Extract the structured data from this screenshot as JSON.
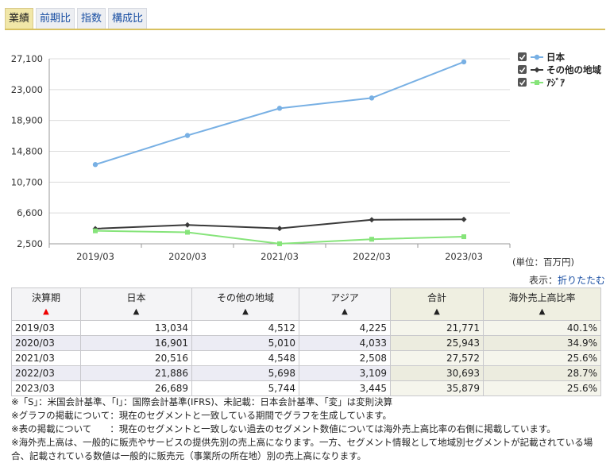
{
  "tabs": [
    {
      "label": "業績"
    },
    {
      "label": "前期比"
    },
    {
      "label": "指数"
    },
    {
      "label": "構成比"
    }
  ],
  "chart_data": {
    "type": "line",
    "x": [
      "2019/03",
      "2020/03",
      "2021/03",
      "2022/03",
      "2023/03"
    ],
    "y_ticks": [
      "27,100",
      "23,000",
      "18,900",
      "14,800",
      "10,700",
      "6,600",
      "2,500"
    ],
    "ylim": [
      2500,
      27100
    ],
    "legend_position": "top-right",
    "series": [
      {
        "name": "日本",
        "color": "#78b0e4",
        "marker": "circle",
        "values": [
          13034,
          16901,
          20516,
          21886,
          26689
        ]
      },
      {
        "name": "その他の地域",
        "color": "#3a3a3a",
        "marker": "diamond",
        "values": [
          4512,
          5010,
          4548,
          5698,
          5744
        ]
      },
      {
        "name": "ｱｼﾞｱ",
        "color": "#86e47a",
        "marker": "square",
        "values": [
          4225,
          4033,
          2508,
          3109,
          3445
        ]
      }
    ]
  },
  "unit_label": "(単位：百万円)",
  "display": {
    "prefix": "表示：",
    "link": "折りたたむ"
  },
  "table": {
    "headers": [
      "決算期",
      "日本",
      "その他の地域",
      "アジア",
      "合計",
      "海外売上高比率"
    ],
    "sort_marks": [
      "▲",
      "▲",
      "▲",
      "▲",
      "▲",
      "▲"
    ],
    "rows": [
      [
        "2019/03",
        "13,034",
        "4,512",
        "4,225",
        "21,771",
        "40.1%"
      ],
      [
        "2020/03",
        "16,901",
        "5,010",
        "4,033",
        "25,943",
        "34.9%"
      ],
      [
        "2021/03",
        "20,516",
        "4,548",
        "2,508",
        "27,572",
        "25.6%"
      ],
      [
        "2022/03",
        "21,886",
        "5,698",
        "3,109",
        "30,693",
        "28.7%"
      ],
      [
        "2023/03",
        "26,689",
        "5,744",
        "3,445",
        "35,879",
        "25.6%"
      ]
    ]
  },
  "notes": [
    "※「S」：米国会計基準、「I」：国際会計基準(IFRS)、未記載：日本会計基準、「変」は変則決算",
    "※グラフの掲載について：現在のセグメントと一致している期間でグラフを生成しています。",
    "※表の掲載について　　：現在のセグメントと一致しない過去のセグメント数値については海外売上高比率の右側に掲載しています。",
    "※海外売上高は、一般的に販売やサービスの提供先別の売上高になります。一方、セグメント情報として地域別セグメントが記載されている場合、記載されている数値は一般的に販売元（事業所の所在地）別の売上高になります。"
  ]
}
